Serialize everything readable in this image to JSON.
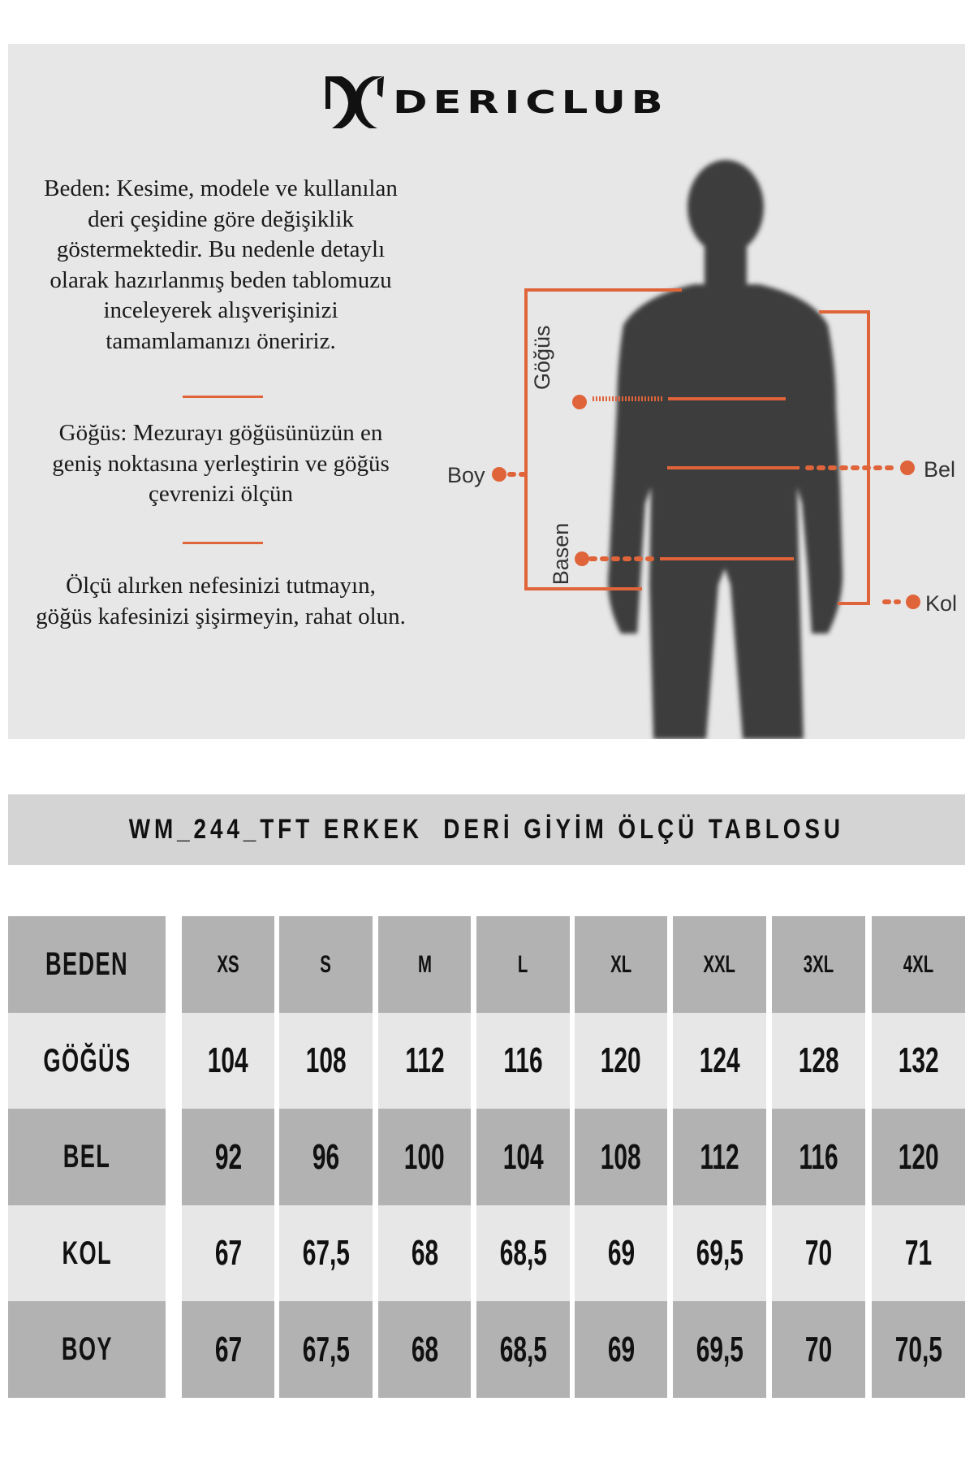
{
  "brand": {
    "name": "DERICLUB"
  },
  "info": {
    "paragraphs": [
      [
        "Beden: Kesime, modele ve kullanılan",
        "deri çeşidine göre değişiklik",
        "göstermektedir. Bu nedenle detaylı",
        "olarak hazırlanmış beden tablomuzu",
        "inceleyerek alışverişinizi",
        "tamamlamanızı öneririz."
      ],
      [
        "Göğüs: Mezurayı göğüsünüzün en",
        "geniş noktasına yerleştirin ve göğüs",
        "çevrenizi ölçün"
      ],
      [
        "Ölçü alırken nefesinizi tutmayın,",
        "göğüs kafesinizi şişirmeyin, rahat olun."
      ]
    ]
  },
  "figure": {
    "labels": {
      "boy": "Boy",
      "gogus": "Göğüs",
      "basen": "Basen",
      "bel": "Bel",
      "kol": "Kol"
    },
    "accent_color": "#e0643a",
    "silhouette_color": "#3d3d3d"
  },
  "table": {
    "title": "WM_244_TFT ERKEK  DERİ GİYİM ÖLÇÜ TABLOSU",
    "header": {
      "label": "BEDEN",
      "sizes": [
        "XS",
        "S",
        "M",
        "L",
        "XL",
        "XXL",
        "3XL",
        "4XL"
      ]
    },
    "rows": [
      {
        "label": "GÖĞÜS",
        "values": [
          "104",
          "108",
          "112",
          "116",
          "120",
          "124",
          "128",
          "132"
        ]
      },
      {
        "label": "BEL",
        "values": [
          "92",
          "96",
          "100",
          "104",
          "108",
          "112",
          "116",
          "120"
        ]
      },
      {
        "label": "KOL",
        "values": [
          "67",
          "67,5",
          "68",
          "68,5",
          "69",
          "69,5",
          "70",
          "71"
        ]
      },
      {
        "label": "BOY",
        "values": [
          "67",
          "67,5",
          "68",
          "68,5",
          "69",
          "69,5",
          "70",
          "70,5"
        ]
      }
    ]
  }
}
